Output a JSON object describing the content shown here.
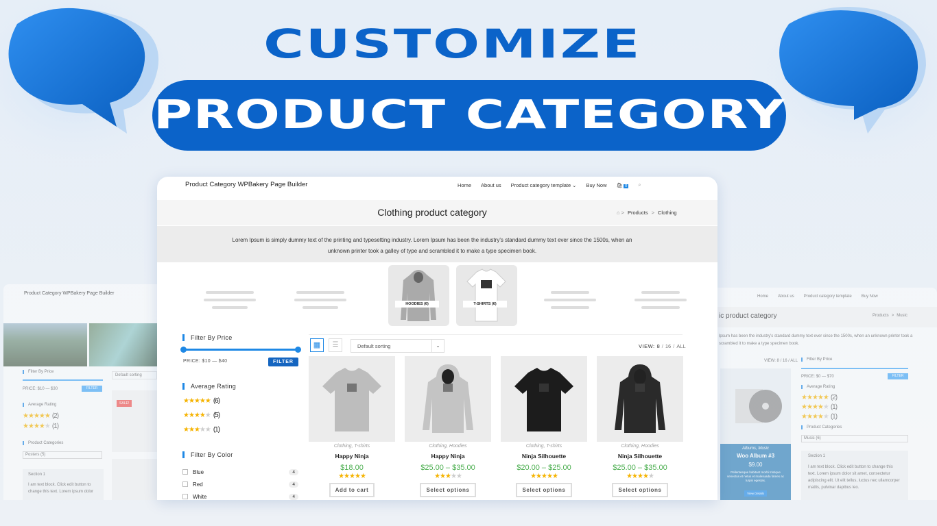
{
  "banner": {
    "title": "CUSTOMIZE",
    "subtitle": "PRODUCT CATEGORY"
  },
  "main": {
    "site_title": "Product Category WPBakery Page Builder",
    "nav": [
      "Home",
      "About us",
      "Product category template",
      "Buy Now"
    ],
    "cart_count": "0",
    "page_title": "Clothing product category",
    "breadcrumb": [
      "Products",
      "Clothing"
    ],
    "description_lines": [
      "Lorem Ipsum is simply dummy text of the printing and typesetting industry. Lorem Ipsum has been the industry's standard dummy text ever since the 1500s, when an",
      "unknown printer took a galley of type and scrambled it to make a type specimen book."
    ],
    "categories": [
      "HOODIES (6)",
      "T-SHIRTS (6)"
    ],
    "sidebar": {
      "price_title": "Filter By Price",
      "price_range": "PRICE: $10 — $40",
      "filter_button": "FILTER",
      "rating_title": "Average Rating",
      "ratings": [
        {
          "stars": 5,
          "count": "(6)"
        },
        {
          "stars": 4,
          "count": "(5)"
        },
        {
          "stars": 3,
          "count": "(1)"
        }
      ],
      "color_title": "Filter By Color",
      "colors": [
        {
          "name": "Blue",
          "count": 4
        },
        {
          "name": "Red",
          "count": 4
        },
        {
          "name": "White",
          "count": 4
        }
      ]
    },
    "toolbar": {
      "sorting": "Default sorting",
      "view_label": "VIEW:",
      "view_options": [
        "8",
        "16",
        "ALL"
      ]
    },
    "products": [
      {
        "categories": "Clothing, T-shirts",
        "name": "Happy Ninja",
        "price": "$18.00",
        "rating": 5,
        "button": "Add to cart"
      },
      {
        "categories": "Clothing, Hoodies",
        "name": "Happy Ninja",
        "price": "$25.00 – $35.00",
        "rating": 3,
        "button": "Select options"
      },
      {
        "categories": "Clothing, T-shirts",
        "name": "Ninja Silhouette",
        "price": "$20.00 – $25.00",
        "rating": 5,
        "button": "Select options"
      },
      {
        "categories": "Clothing, Hoodies",
        "name": "Ninja Silhouette",
        "price": "$25.00 – $35.00",
        "rating": 4,
        "button": "Select options"
      }
    ]
  },
  "left_preview": {
    "site_title": "Product Category WPBakery Page Builder",
    "price_title": "Filter By Price",
    "price_range": "PRICE: $10 — $30",
    "filter_button": "FILTER",
    "rating_title": "Average Rating",
    "ratings": [
      {
        "stars": 5,
        "count": "(2)"
      },
      {
        "stars": 4,
        "count": "(1)"
      }
    ],
    "categories_title": "Product Categories",
    "category_select": "Posters (5)",
    "section_title": "Section 1",
    "section_text": "I am text block. Click edit button to change this text. Lorem ipsum dolor",
    "sorting": "Default sorting",
    "sale": "SALE!"
  },
  "right_preview": {
    "nav": [
      "Home",
      "About us",
      "Product category template",
      "Buy Now"
    ],
    "page_title": "ic product category",
    "breadcrumb": [
      "Products",
      "Music"
    ],
    "description": "lpsum has been the industry's standard dummy text ever since the 1500s, when an unknown printer took a scrambled it to make a type specimen book.",
    "view": "VIEW: 8 / 16 / ALL",
    "product_categories": "Albums, Music",
    "product_name": "Woo Album #3",
    "product_price": "$9.00",
    "product_text": "Pellentesque habitant morbi tristique senectus et netus et malesuada fames ac turpis egestas.",
    "product_button": "View Details",
    "price_title": "Filter By Price",
    "price_range": "PRICE: $0 — $70",
    "filter_button": "FILTER",
    "rating_title": "Average Rating",
    "ratings": [
      {
        "stars": 5,
        "count": "(2)"
      },
      {
        "stars": 4,
        "count": "(1)"
      },
      {
        "stars": 4,
        "count": "(1)"
      }
    ],
    "categories_title": "Product Categories",
    "category_select": "Music (6)",
    "section_title": "Section 1",
    "section_text": "I am text block. Click edit button to change this text. Lorem ipsum dolor sit amet, consectetur adipiscing elit. Ut elit tellus, luctus nec ullamcorper mattis, pulvinar dapibus leo."
  }
}
